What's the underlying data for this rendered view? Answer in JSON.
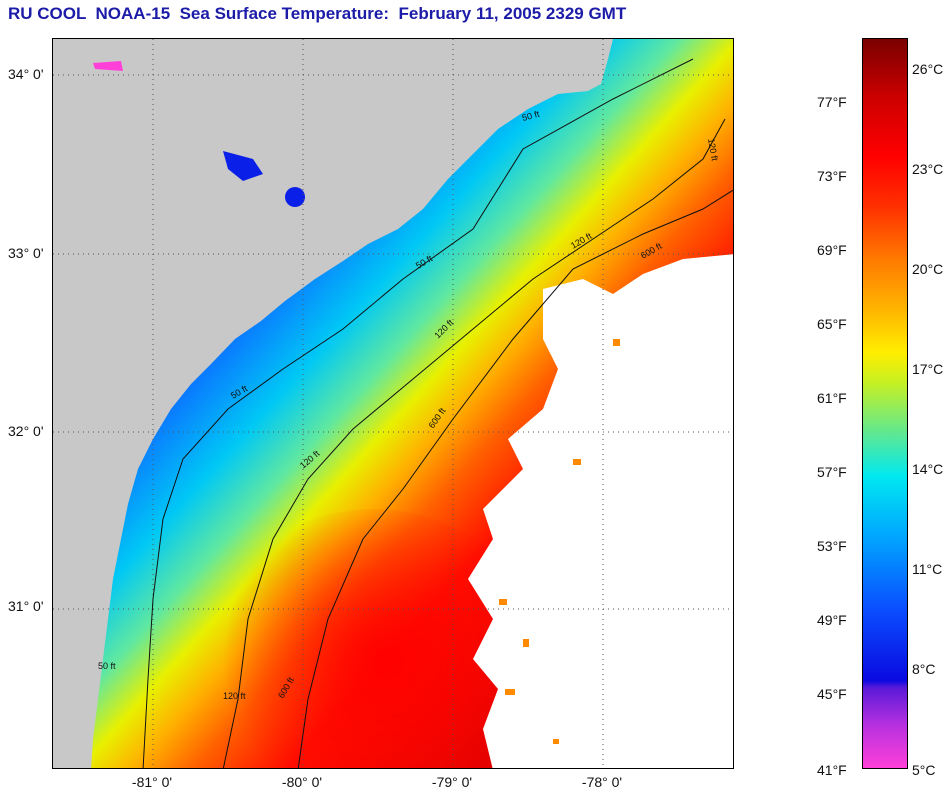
{
  "title": "RU COOL  NOAA-15  Sea Surface Temperature:  February 11, 2005 2329 GMT",
  "map": {
    "lat_labels": [
      "34° 0'",
      "33° 0'",
      "32° 0'",
      "31° 0'"
    ],
    "lon_labels": [
      "-81° 0'",
      "-80° 0'",
      "-79° 0'",
      "-78° 0'"
    ],
    "contour_labels": [
      "50 ft",
      "50 ft",
      "50 ft",
      "50 ft",
      "120 ft",
      "120 ft",
      "120 ft",
      "120 ft",
      "120 ft",
      "600 ft",
      "600 ft",
      "600 ft"
    ],
    "land_color": "#c8c8c8",
    "cloud_color": "#ffffff"
  },
  "colorbar": {
    "fahrenheit_labels": [
      "77°F",
      "73°F",
      "69°F",
      "65°F",
      "61°F",
      "57°F",
      "53°F",
      "49°F",
      "45°F",
      "41°F"
    ],
    "celsius_labels": [
      "26°C",
      "23°C",
      "20°C",
      "17°C",
      "14°C",
      "11°C",
      "8°C",
      "5°C"
    ],
    "range_f": [
      41,
      80
    ],
    "range_c": [
      5,
      27
    ]
  }
}
